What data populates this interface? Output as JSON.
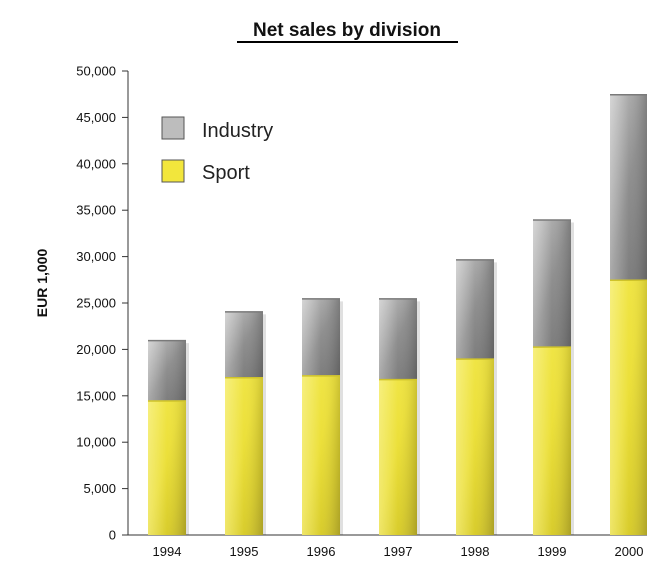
{
  "chart_data": {
    "type": "bar",
    "stacked": true,
    "title": "Net sales by division",
    "xlabel": "",
    "ylabel": "EUR 1,000",
    "categories": [
      "1994",
      "1995",
      "1996",
      "1997",
      "1998",
      "1999",
      "2000"
    ],
    "x_tick_labels": [
      "1994",
      "1995",
      "1996",
      "1997",
      "1998",
      "1999",
      "2000"
    ],
    "y_tick_labels": [
      "0",
      "5,000",
      "10,000",
      "15,000",
      "20,000",
      "25,000",
      "30,000",
      "35,000",
      "40,000",
      "45,000",
      "50,000"
    ],
    "ylim": [
      0,
      50000
    ],
    "series": [
      {
        "name": "Sport",
        "values": [
          14500,
          17000,
          17200,
          16800,
          19000,
          20300,
          27500
        ],
        "color": "#efe43a"
      },
      {
        "name": "Industry",
        "values": [
          6500,
          7100,
          8300,
          8700,
          10700,
          13700,
          20000
        ],
        "color": "#9e9e9e"
      }
    ],
    "legend": {
      "placement": "top-left",
      "entries": [
        "Industry",
        "Sport"
      ]
    },
    "grid": false
  }
}
